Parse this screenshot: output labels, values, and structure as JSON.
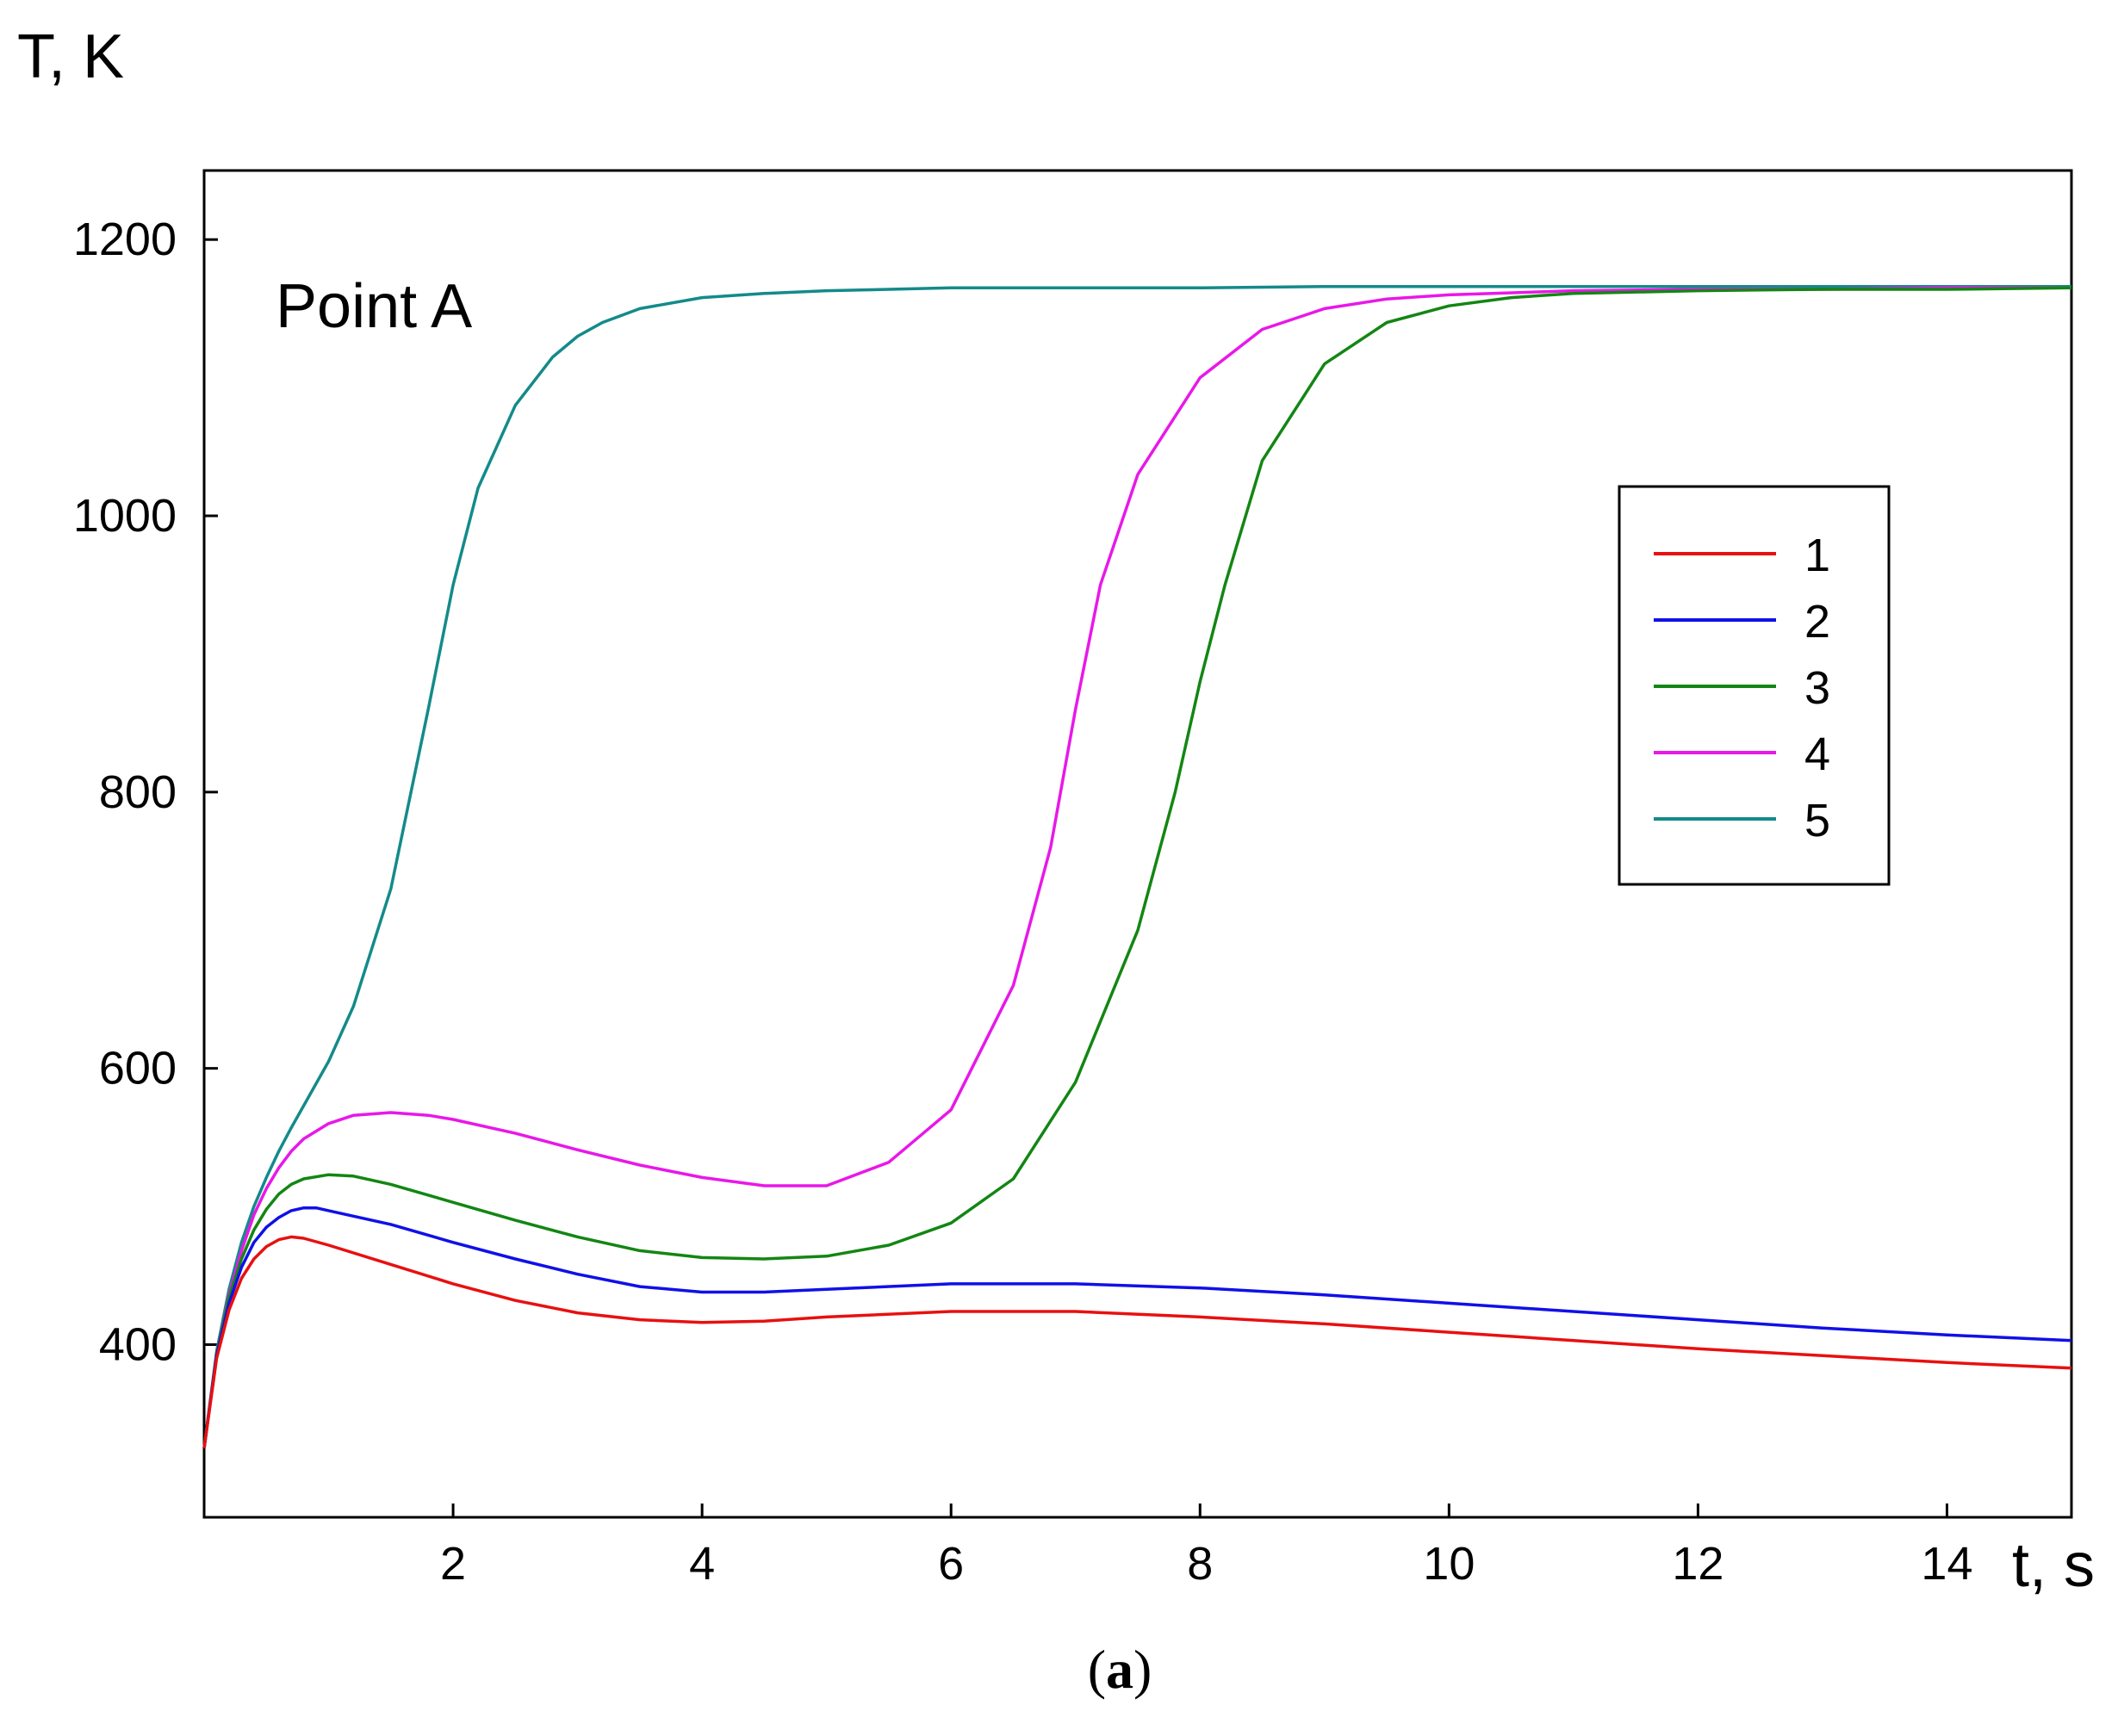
{
  "chart_data": {
    "type": "line",
    "ylabel": "T, K",
    "xlabel": "t, s",
    "annotation": "Point A",
    "caption": {
      "open": "(",
      "letter": "a",
      "close": ")"
    },
    "xlim": [
      0,
      15
    ],
    "ylim": [
      275,
      1250
    ],
    "xticks": [
      2,
      4,
      6,
      8,
      10,
      12,
      14
    ],
    "yticks": [
      400,
      600,
      800,
      1000,
      1200
    ],
    "legend_position": "right, upper-middle",
    "grid": false,
    "series": [
      {
        "name": "1",
        "color": "#e81010",
        "x": [
          0,
          0.1,
          0.2,
          0.3,
          0.4,
          0.5,
          0.6,
          0.7,
          0.8,
          1.0,
          1.5,
          2,
          2.5,
          3,
          3.5,
          4,
          4.5,
          5,
          6,
          7,
          8,
          9,
          10,
          11,
          12,
          13,
          14,
          15
        ],
        "y": [
          325,
          390,
          425,
          448,
          462,
          471,
          476,
          478,
          477,
          472,
          458,
          444,
          432,
          423,
          418,
          416,
          417,
          420,
          424,
          424,
          420,
          415,
          409,
          403,
          397,
          392,
          387,
          383
        ]
      },
      {
        "name": "2",
        "color": "#1010e8",
        "x": [
          0,
          0.1,
          0.2,
          0.3,
          0.4,
          0.5,
          0.6,
          0.7,
          0.8,
          0.9,
          1.0,
          1.5,
          2,
          2.5,
          3,
          3.5,
          4,
          4.5,
          5,
          6,
          7,
          8,
          9,
          10,
          11,
          12,
          13,
          14,
          15
        ],
        "y": [
          325,
          392,
          430,
          456,
          474,
          485,
          492,
          497,
          499,
          499,
          497,
          487,
          474,
          462,
          451,
          442,
          438,
          438,
          440,
          444,
          444,
          441,
          436,
          430,
          424,
          418,
          412,
          407,
          403
        ]
      },
      {
        "name": "3",
        "color": "#138613",
        "x": [
          0,
          0.1,
          0.2,
          0.3,
          0.4,
          0.5,
          0.6,
          0.7,
          0.8,
          1.0,
          1.2,
          1.5,
          2,
          2.5,
          3,
          3.5,
          4,
          4.5,
          5,
          5.5,
          6,
          6.5,
          7,
          7.5,
          7.8,
          8,
          8.2,
          8.5,
          9,
          9.5,
          10,
          10.5,
          11,
          12,
          13,
          14,
          15
        ],
        "y": [
          325,
          393,
          434,
          462,
          483,
          498,
          509,
          516,
          520,
          523,
          522,
          516,
          503,
          490,
          478,
          468,
          463,
          462,
          464,
          472,
          488,
          520,
          590,
          700,
          800,
          880,
          950,
          1040,
          1110,
          1140,
          1152,
          1158,
          1161,
          1163,
          1164,
          1164,
          1165
        ]
      },
      {
        "name": "4",
        "color": "#e818e8",
        "x": [
          0,
          0.1,
          0.2,
          0.3,
          0.4,
          0.5,
          0.6,
          0.7,
          0.8,
          1.0,
          1.2,
          1.5,
          1.8,
          2,
          2.5,
          3,
          3.5,
          4,
          4.5,
          5,
          5.5,
          6,
          6.5,
          6.8,
          7.0,
          7.2,
          7.5,
          8,
          8.5,
          9,
          9.5,
          10,
          11,
          12,
          13,
          14,
          15
        ],
        "y": [
          325,
          393,
          436,
          468,
          494,
          513,
          528,
          540,
          549,
          560,
          566,
          568,
          566,
          563,
          553,
          541,
          530,
          521,
          515,
          515,
          532,
          570,
          660,
          760,
          860,
          950,
          1030,
          1100,
          1135,
          1150,
          1157,
          1160,
          1163,
          1164,
          1164,
          1165,
          1165
        ]
      },
      {
        "name": "5",
        "color": "#148a8a",
        "x": [
          0,
          0.1,
          0.2,
          0.3,
          0.4,
          0.5,
          0.6,
          0.7,
          0.8,
          1.0,
          1.2,
          1.5,
          1.8,
          2.0,
          2.2,
          2.5,
          2.8,
          3.0,
          3.2,
          3.5,
          4,
          4.5,
          5,
          5.5,
          6,
          7,
          8,
          9,
          10,
          12,
          15
        ],
        "y": [
          325,
          395,
          440,
          474,
          500,
          521,
          540,
          557,
          573,
          605,
          645,
          730,
          860,
          950,
          1020,
          1080,
          1115,
          1130,
          1140,
          1150,
          1158,
          1161,
          1163,
          1164,
          1165,
          1165,
          1165,
          1166,
          1166,
          1166,
          1166
        ]
      }
    ]
  }
}
